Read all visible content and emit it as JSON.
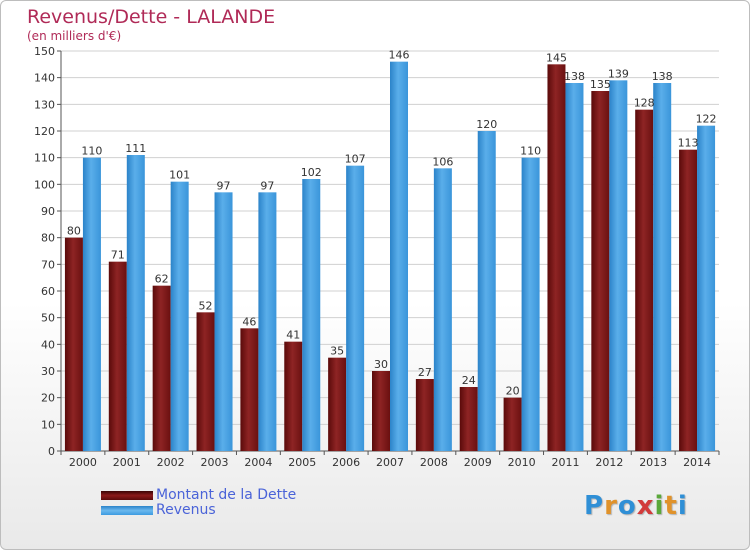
{
  "header": {
    "title": "Revenus/Dette - LALANDE",
    "subtitle": "(en milliers d'€)"
  },
  "chart_data": {
    "type": "bar",
    "title": "Revenus/Dette - LALANDE",
    "subtitle": "(en milliers d'€)",
    "categories": [
      "2000",
      "2001",
      "2002",
      "2003",
      "2004",
      "2005",
      "2006",
      "2007",
      "2008",
      "2009",
      "2010",
      "2011",
      "2012",
      "2013",
      "2014"
    ],
    "series": [
      {
        "name": "Montant de la Dette",
        "color": "#8b1a1a",
        "values": [
          80,
          71,
          62,
          52,
          46,
          41,
          35,
          30,
          27,
          24,
          20,
          145,
          135,
          128,
          113
        ]
      },
      {
        "name": "Revenus",
        "color": "#3d9be0",
        "values": [
          110,
          111,
          101,
          97,
          97,
          102,
          107,
          146,
          106,
          120,
          110,
          138,
          139,
          138,
          122
        ]
      }
    ],
    "ylim": [
      0,
      150
    ],
    "yticks": [
      0,
      10,
      20,
      30,
      40,
      50,
      60,
      70,
      80,
      90,
      100,
      110,
      120,
      130,
      140,
      150
    ],
    "grid": true,
    "legend": "bottom-left"
  },
  "legend": {
    "items": [
      {
        "label": "Montant de la Dette",
        "color": "#8b1a1a"
      },
      {
        "label": "Revenus",
        "color": "#3d9be0"
      }
    ]
  },
  "logo": {
    "text": "Proxiti",
    "letters": [
      {
        "char": "P",
        "color": "#2f8fd6"
      },
      {
        "char": "r",
        "color": "#e0922a"
      },
      {
        "char": "o",
        "color": "#2f8fd6"
      },
      {
        "char": "x",
        "color": "#d23a3a"
      },
      {
        "char": "i",
        "color": "#5aa83a"
      },
      {
        "char": "t",
        "color": "#e0922a"
      },
      {
        "char": "i",
        "color": "#2f8fd6"
      }
    ]
  }
}
